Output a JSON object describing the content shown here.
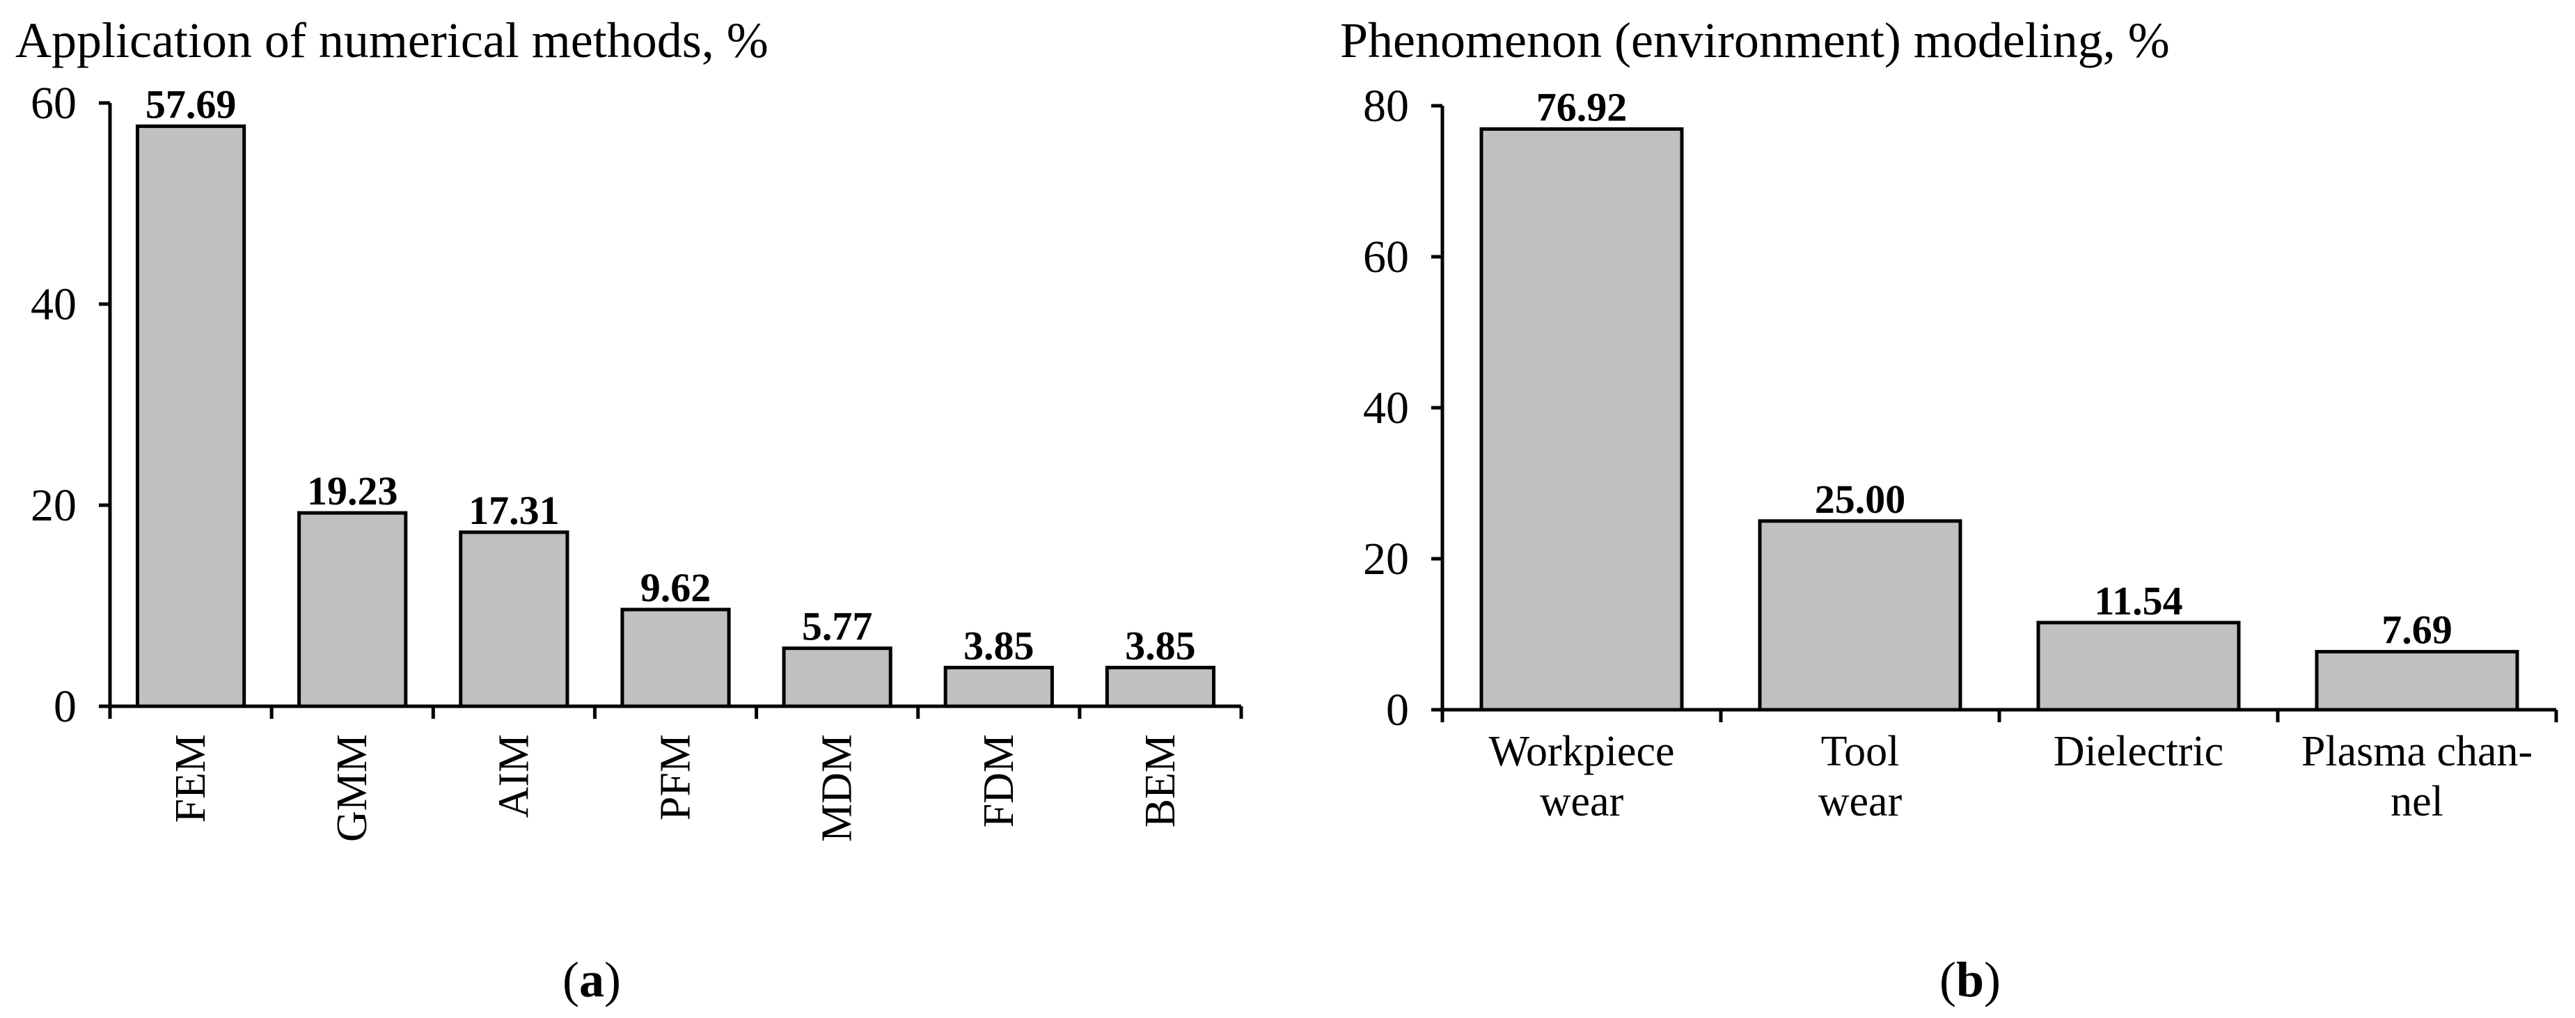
{
  "chart_data": [
    {
      "type": "bar",
      "title": "Application of numerical methods, %",
      "categories": [
        "FEM",
        "GMM",
        "AIM",
        "PFM",
        "MDM",
        "FDM",
        "BEM"
      ],
      "values": [
        57.69,
        19.23,
        17.31,
        9.62,
        5.77,
        3.85,
        3.85
      ],
      "value_labels": [
        "57.69",
        "19.23",
        "17.31",
        "9.62",
        "5.77",
        "3.85",
        "3.85"
      ],
      "yticks": [
        "0",
        "20",
        "40",
        "60"
      ],
      "ylim": [
        0,
        60
      ],
      "grid": false,
      "category_label_orientation": "vertical",
      "panel_label": "a",
      "bar_color": "#c0c0c0"
    },
    {
      "type": "bar",
      "title": "Phenomenon (environment) modeling, %",
      "categories": [
        [
          "Workpiece",
          "wear"
        ],
        [
          "Tool",
          "wear"
        ],
        [
          "Dielectric"
        ],
        [
          "Plasma chan-",
          "nel"
        ]
      ],
      "values": [
        76.92,
        25.0,
        11.54,
        7.69
      ],
      "value_labels": [
        "76.92",
        "25.00",
        "11.54",
        "7.69"
      ],
      "yticks": [
        "0",
        "20",
        "40",
        "60",
        "80"
      ],
      "ylim": [
        0,
        80
      ],
      "grid": false,
      "category_label_orientation": "horizontal",
      "panel_label": "b",
      "bar_color": "#c0c0c0"
    }
  ]
}
